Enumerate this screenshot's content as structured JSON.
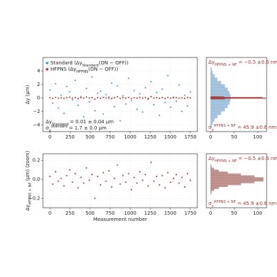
{
  "chart_data": [
    {
      "type": "scatter",
      "ylabel": [
        {
          "text": "Δy (μm)"
        }
      ],
      "x": [
        0,
        35,
        70,
        105,
        140,
        175,
        210,
        245,
        280,
        315,
        350,
        385,
        420,
        455,
        490,
        525,
        560,
        595,
        630,
        665,
        700,
        735,
        770,
        805,
        840,
        875,
        910,
        945,
        980,
        1015,
        1050,
        1085,
        1120,
        1155,
        1190,
        1225,
        1260,
        1295,
        1330,
        1365,
        1400,
        1435,
        1470,
        1505,
        1540,
        1575,
        1610,
        1645,
        1680,
        1715,
        1750
      ],
      "series": [
        {
          "name": [
            {
              "text": "Standard (Δy"
            },
            {
              "text": "Standard",
              "shift": "sub"
            },
            {
              "text": "(ON − OFF))"
            }
          ],
          "color": "#3d8fd1",
          "values": [
            1.2,
            -0.8,
            2.1,
            -1.5,
            0.4,
            -2.3,
            1.7,
            0.9,
            -0.3,
            2.6,
            -1.1,
            0.2,
            -2.8,
            1.4,
            -0.6,
            3.1,
            -1.9,
            0.7,
            1.0,
            -2.4,
            0.5,
            -0.1,
            2.2,
            -1.3,
            1.8,
            -3.4,
            0.3,
            -0.9,
            2.9,
            -0.4,
            1.1,
            -1.7,
            0.6,
            -2.1,
            1.5,
            -0.2,
            2.4,
            -1.0,
            0.8,
            -2.6,
            1.3,
            -0.7,
            3.3,
            -1.4,
            0.1,
            -0.5,
            1.9,
            -2.0,
            0.4,
            -1.2,
            0.9
          ]
        },
        {
          "name": [
            {
              "text": "HFPNS (Δy"
            },
            {
              "text": "HFPNS",
              "shift": "sub"
            },
            {
              "text": "(ON − OFF))"
            }
          ],
          "color": "#a3302c",
          "values": [
            0.03,
            -0.05,
            0.08,
            -0.02,
            0.01,
            -0.07,
            0.04,
            0.1,
            -0.03,
            0.06,
            -0.09,
            0.02,
            -0.04,
            0.12,
            -0.01,
            0.05,
            -0.2,
            0.03,
            -0.06,
            0.07,
            -0.02,
            0.09,
            -0.08,
            0.01,
            0.15,
            -0.05,
            0.04,
            -0.03,
            0.06,
            -0.11,
            0.02,
            -0.04,
            0.08,
            -0.01,
            0.05,
            -0.07,
            0.18,
            -0.02,
            0.03,
            -0.06,
            0.04,
            -0.09,
            0.07,
            -0.03,
            0.01,
            0.05,
            -0.04,
            0.02,
            -0.08,
            0.06,
            -0.01
          ]
        }
      ],
      "xlim": [
        -87.5,
        1837.5
      ],
      "ylim": [
        -5,
        6
      ],
      "xticks": [
        0,
        250,
        500,
        750,
        1000,
        1250,
        1500,
        1750
      ],
      "yticks": [
        {
          "value": -4,
          "label": "−4"
        },
        {
          "value": -2,
          "label": "−2"
        },
        0,
        2,
        4
      ],
      "grid": true,
      "legend": "upper left",
      "annotations": [
        [
          {
            "text": "Δy"
          },
          {
            "text": "Standard",
            "shift": "sub"
          },
          {
            "text": " = 0.01 ± 0.04 μm"
          }
        ],
        [
          {
            "text": "σ"
          },
          {
            "text": "y",
            "shift": "sub"
          },
          {
            "text": "Standard",
            "shift": "super"
          },
          {
            "text": " = 1.7 ± 0.0 μm"
          }
        ]
      ]
    },
    {
      "type": "histogram",
      "orientation": "horizontal",
      "xlim": [
        -9,
        119
      ],
      "ylim": [
        -5,
        6
      ],
      "xticks": [
        0,
        50,
        100
      ],
      "grid": true,
      "series": [
        {
          "color": "#8fb4d3",
          "bins": [
            -4.5,
            -4,
            -3.5,
            -3,
            -2.5,
            -2,
            -1.5,
            -1,
            -0.5,
            0,
            0.5,
            1,
            1.5,
            2,
            2.5,
            3,
            3.5,
            4,
            4.5
          ],
          "counts": [
            2,
            4,
            8,
            14,
            22,
            30,
            36,
            40,
            42,
            42,
            40,
            36,
            30,
            22,
            14,
            8,
            4,
            2
          ]
        },
        {
          "color": "#a3302c",
          "bins": [
            -0.2,
            -0.1,
            0,
            0.1,
            0.2
          ],
          "counts": [
            30,
            118,
            110,
            28
          ]
        }
      ],
      "annotation_color": "#a3302c",
      "annotations": [
        [
          {
            "text": "Δy"
          },
          {
            "text": "HFPNS + NF",
            "shift": "sub"
          },
          {
            "text": " = −0.5  ±0.6 nm"
          }
        ],
        [
          {
            "text": "σ"
          },
          {
            "text": "y",
            "shift": "sub"
          },
          {
            "text": "HFPNS + NF",
            "shift": "super"
          },
          {
            "text": " = 45.9  ±0.6 nm"
          }
        ]
      ]
    },
    {
      "type": "scatter",
      "xlabel": "Measurement number",
      "ylabel": [
        {
          "text": "Δy"
        },
        {
          "text": "HFPNS + NF",
          "shift": "sub"
        },
        {
          "text": " (μm) (zoom)"
        }
      ],
      "x": [
        0,
        35,
        70,
        105,
        140,
        175,
        210,
        245,
        280,
        315,
        350,
        385,
        420,
        455,
        490,
        525,
        560,
        595,
        630,
        665,
        700,
        735,
        770,
        805,
        840,
        875,
        910,
        945,
        980,
        1015,
        1050,
        1085,
        1120,
        1155,
        1190,
        1225,
        1260,
        1295,
        1330,
        1365,
        1400,
        1435,
        1470,
        1505,
        1540,
        1575,
        1610,
        1645,
        1680,
        1715,
        1750
      ],
      "series": [
        {
          "color": "#a3302c",
          "values": [
            0.03,
            -0.05,
            0.08,
            -0.02,
            0.01,
            -0.07,
            0.04,
            0.1,
            -0.03,
            0.06,
            -0.09,
            0.02,
            -0.04,
            0.12,
            -0.01,
            0.05,
            -0.2,
            0.03,
            -0.06,
            0.07,
            -0.02,
            0.09,
            -0.08,
            0.01,
            0.15,
            -0.05,
            0.04,
            -0.03,
            0.06,
            -0.11,
            0.02,
            -0.04,
            0.08,
            -0.01,
            0.05,
            -0.07,
            0.18,
            -0.02,
            0.03,
            -0.06,
            0.04,
            -0.09,
            0.07,
            -0.03,
            0.01,
            0.05,
            -0.04,
            0.02,
            -0.08,
            0.06,
            -0.01
          ]
        }
      ],
      "xlim": [
        -87.5,
        1837.5
      ],
      "ylim": [
        -0.3,
        0.27
      ],
      "xticks": [
        0,
        250,
        500,
        750,
        1000,
        1250,
        1500,
        1750
      ],
      "yticks": [
        {
          "value": -0.2,
          "label": "−0.2"
        },
        {
          "value": 0,
          "label": "0.0"
        },
        0.2
      ],
      "grid": true
    },
    {
      "type": "histogram",
      "orientation": "horizontal",
      "xlim": [
        -9,
        119
      ],
      "ylim": [
        -0.3,
        0.27
      ],
      "xticks": [
        0,
        50,
        100
      ],
      "grid": true,
      "series": [
        {
          "color": "#b07a76",
          "bins": [
            -0.24,
            -0.22,
            -0.2,
            -0.18,
            -0.16,
            -0.14,
            -0.12,
            -0.1,
            -0.08,
            -0.06,
            -0.04,
            -0.02,
            0,
            0.02,
            0.04,
            0.06,
            0.08,
            0.1,
            0.12,
            0.14,
            0.16,
            0.18,
            0.2,
            0.22,
            0.24
          ],
          "counts": [
            0,
            0,
            0,
            0,
            1,
            2,
            7,
            17,
            36,
            64,
            93,
            112,
            112,
            93,
            64,
            36,
            17,
            7,
            2,
            1,
            0,
            0,
            0,
            0
          ]
        }
      ],
      "annotation_color": "#a3302c",
      "annotations": [
        [
          {
            "text": "Δy"
          },
          {
            "text": "HFPNS + NF",
            "shift": "sub"
          },
          {
            "text": " = −0.5  ±0.6 nm"
          }
        ],
        [
          {
            "text": "σ"
          },
          {
            "text": "y",
            "shift": "sub"
          },
          {
            "text": "HFPNS + NF",
            "shift": "super"
          },
          {
            "text": " = 45.9  ±0.6 nm"
          }
        ]
      ]
    }
  ]
}
